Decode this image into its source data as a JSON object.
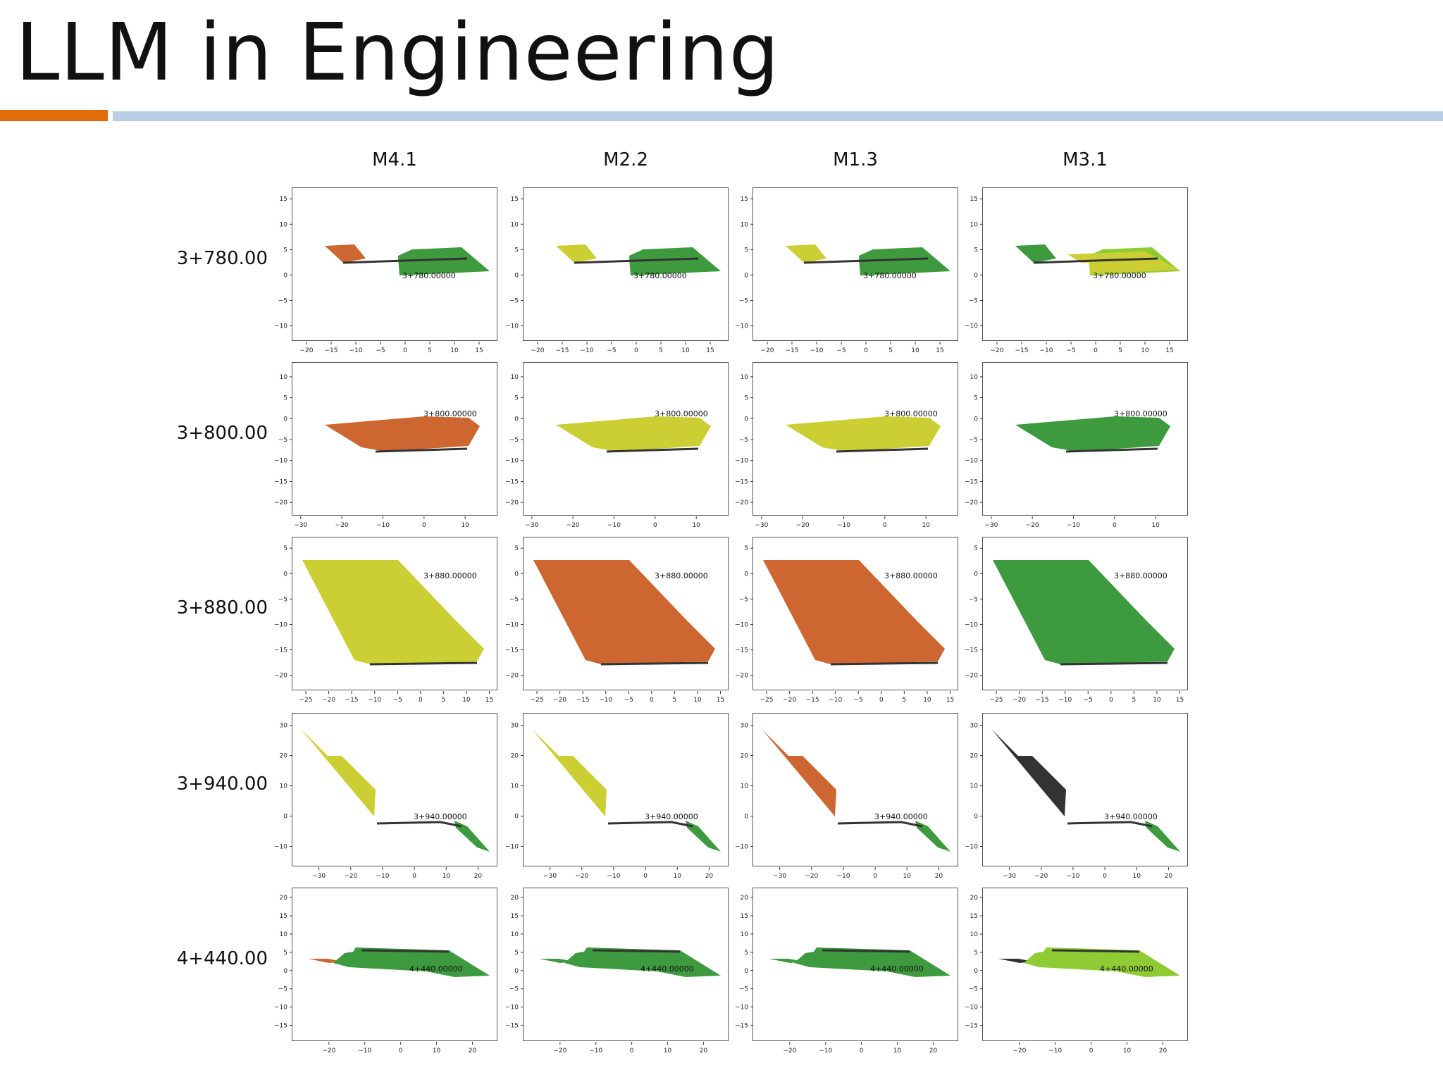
{
  "slide": {
    "title": "LLM in Engineering"
  },
  "colors": {
    "accent_bar": "#e36c0a",
    "rule_bar": "#b9cde5",
    "orange": "#cd6630",
    "yellow": "#cccf33",
    "green": "#3e9a3e",
    "lightgreen": "#8fcc33",
    "black": "#333333",
    "gray": "#888888",
    "road": "#333333"
  },
  "grid": {
    "models": [
      "M4.1",
      "M2.2",
      "M1.3",
      "M3.1"
    ],
    "rows": [
      {
        "station": "3+780.00",
        "plot_label": "3+780.00000",
        "xticks": [
          -20,
          -15,
          -10,
          -5,
          0,
          5,
          10,
          15
        ],
        "yticks": [
          15,
          10,
          5,
          0,
          -5,
          -10
        ],
        "xlim": [
          -22,
          18
        ],
        "ylim": [
          -12,
          16
        ],
        "cells": [
          {
            "model": "M4.1",
            "fills": [
              "orange",
              "green"
            ]
          },
          {
            "model": "M2.2",
            "fills": [
              "yellow",
              "green"
            ]
          },
          {
            "model": "M1.3",
            "fills": [
              "yellow",
              "green"
            ]
          },
          {
            "model": "M3.1",
            "fills": [
              "green",
              "lightgreen",
              "yellow"
            ]
          }
        ]
      },
      {
        "station": "3+800.00",
        "plot_label": "3+800.00000",
        "xticks": [
          -30,
          -20,
          -10,
          0,
          10
        ],
        "yticks": [
          10,
          5,
          0,
          -5,
          -10,
          -15,
          -20
        ],
        "xlim": [
          -31,
          17
        ],
        "ylim": [
          -22,
          12
        ],
        "cells": [
          {
            "model": "M4.1",
            "fills": [
              "orange"
            ]
          },
          {
            "model": "M2.2",
            "fills": [
              "yellow"
            ]
          },
          {
            "model": "M1.3",
            "fills": [
              "yellow"
            ]
          },
          {
            "model": "M3.1",
            "fills": [
              "green"
            ]
          }
        ]
      },
      {
        "station": "3+880.00",
        "plot_label": "3+880.00000",
        "xticks": [
          -25,
          -20,
          -15,
          -10,
          -5,
          0,
          5,
          10,
          15
        ],
        "yticks": [
          5,
          0,
          -5,
          -10,
          -15,
          -20
        ],
        "xlim": [
          -27,
          16
        ],
        "ylim": [
          -22,
          6
        ],
        "cells": [
          {
            "model": "M4.1",
            "fills": [
              "yellow"
            ]
          },
          {
            "model": "M2.2",
            "fills": [
              "orange"
            ]
          },
          {
            "model": "M1.3",
            "fills": [
              "orange"
            ]
          },
          {
            "model": "M3.1",
            "fills": [
              "green"
            ]
          }
        ]
      },
      {
        "station": "3+940.00",
        "plot_label": "3+940.00000",
        "xticks": [
          -30,
          -20,
          -10,
          0,
          10,
          20
        ],
        "yticks": [
          30,
          20,
          10,
          0,
          -10
        ],
        "xlim": [
          -37,
          25
        ],
        "ylim": [
          -15,
          32
        ],
        "cells": [
          {
            "model": "M4.1",
            "fills": [
              "yellow",
              "green"
            ]
          },
          {
            "model": "M2.2",
            "fills": [
              "yellow",
              "green"
            ]
          },
          {
            "model": "M1.3",
            "fills": [
              "orange",
              "green"
            ]
          },
          {
            "model": "M3.1",
            "fills": [
              "black",
              "green"
            ]
          }
        ]
      },
      {
        "station": "4+440.00",
        "plot_label": "4+440.00000",
        "xticks": [
          -20,
          -10,
          0,
          10,
          20
        ],
        "yticks": [
          20,
          15,
          10,
          5,
          0,
          -5,
          -10,
          -15
        ],
        "xlim": [
          -29,
          26
        ],
        "ylim": [
          -18,
          21
        ],
        "cells": [
          {
            "model": "M4.1",
            "fills": [
              "orange",
              "green"
            ]
          },
          {
            "model": "M2.2",
            "fills": [
              "green",
              "green"
            ]
          },
          {
            "model": "M1.3",
            "fills": [
              "green",
              "green"
            ]
          },
          {
            "model": "M3.1",
            "fills": [
              "black",
              "lightgreen"
            ]
          }
        ]
      }
    ]
  }
}
